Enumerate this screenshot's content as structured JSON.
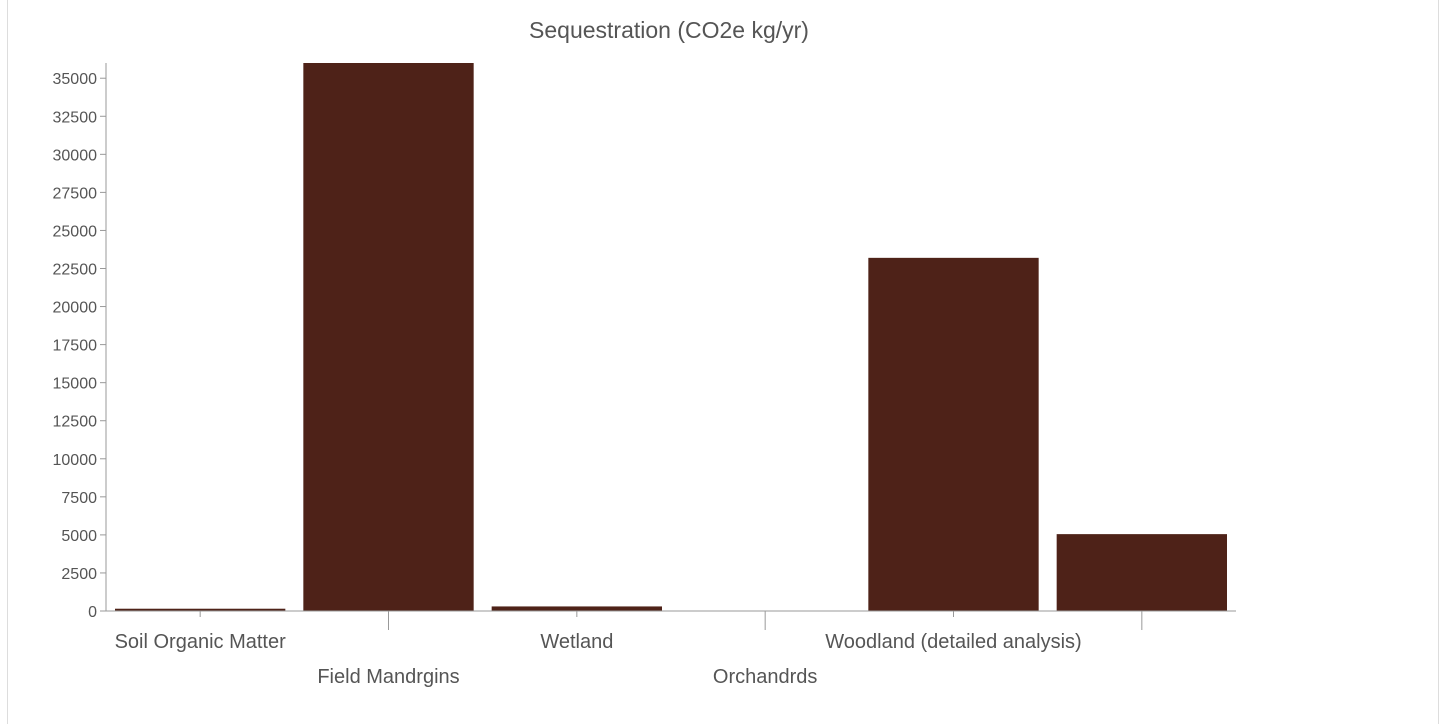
{
  "chart_data": {
    "type": "bar",
    "title": "Sequestration (CO2e kg/yr)",
    "xlabel": "",
    "ylabel": "",
    "categories": [
      "Soil Organic Matter",
      "Field Mandrgins",
      "Wetland",
      "Orchandrds",
      "Woodland (detailed analysis)",
      ""
    ],
    "values": [
      150,
      36000,
      300,
      0,
      23200,
      5050
    ],
    "ylim": [
      0,
      36000
    ],
    "yticks": [
      0,
      2500,
      5000,
      7500,
      10000,
      12500,
      15000,
      17500,
      20000,
      22500,
      25000,
      27500,
      30000,
      32500,
      35000
    ],
    "bar_color": "#4e2218",
    "axis_color": "#999999",
    "grid": false,
    "legend": "none"
  }
}
